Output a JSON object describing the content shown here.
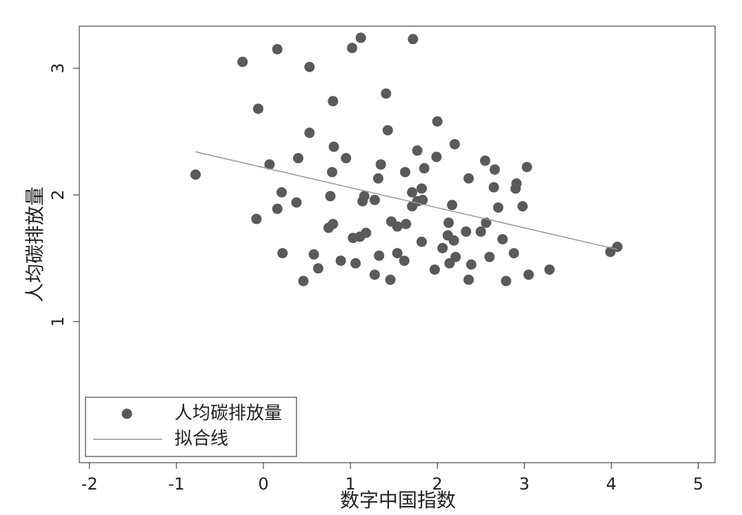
{
  "chart_data": {
    "type": "scatter",
    "xlabel": "数字中国指数",
    "ylabel": "人均碳排放量",
    "xlim": [
      -2.117,
      5.194
    ],
    "ylim": [
      -0.114,
      3.332
    ],
    "xticks": [
      -2,
      -1,
      0,
      1,
      2,
      3,
      4,
      5
    ],
    "yticks": [
      1,
      2,
      3
    ],
    "legend": "lower left",
    "series": [
      {
        "name": "人均碳排放量",
        "type": "scatter",
        "color": "#5a5a5a",
        "x": [
          -0.78,
          -0.24,
          0.16,
          0.53,
          1.02,
          1.12,
          1.72,
          -0.06,
          0.8,
          1.41,
          0.53,
          1.43,
          2.0,
          0.81,
          1.77,
          2.2,
          0.07,
          0.4,
          0.95,
          0.79,
          1.35,
          1.63,
          1.85,
          1.99,
          2.55,
          2.66,
          3.03,
          2.36,
          1.32,
          2.91,
          2.9,
          2.65,
          1.82,
          1.71,
          0.21,
          0.77,
          1.16,
          1.14,
          1.28,
          1.83,
          1.77,
          1.71,
          2.17,
          2.7,
          2.98,
          0.38,
          0.16,
          -0.08,
          1.47,
          1.54,
          0.8,
          0.75,
          1.64,
          2.13,
          2.56,
          1.18,
          1.03,
          1.11,
          2.12,
          2.19,
          2.33,
          2.5,
          2.75,
          1.82,
          2.06,
          0.22,
          0.58,
          1.33,
          1.54,
          2.21,
          2.6,
          2.88,
          3.99,
          4.07,
          0.89,
          1.06,
          1.62,
          2.14,
          2.39,
          0.63,
          1.97,
          3.29,
          1.28,
          3.05,
          0.46,
          1.46,
          2.36,
          2.79
        ],
        "values": [
          2.16,
          3.05,
          3.15,
          3.01,
          3.16,
          3.24,
          3.23,
          2.68,
          2.74,
          2.8,
          2.49,
          2.51,
          2.58,
          2.38,
          2.35,
          2.4,
          2.24,
          2.29,
          2.29,
          2.18,
          2.24,
          2.18,
          2.21,
          2.3,
          2.27,
          2.2,
          2.22,
          2.13,
          2.13,
          2.09,
          2.05,
          2.06,
          2.05,
          2.02,
          2.02,
          1.99,
          1.99,
          1.95,
          1.96,
          1.96,
          1.95,
          1.91,
          1.92,
          1.9,
          1.91,
          1.94,
          1.89,
          1.81,
          1.79,
          1.75,
          1.77,
          1.74,
          1.77,
          1.78,
          1.78,
          1.7,
          1.66,
          1.67,
          1.68,
          1.64,
          1.71,
          1.71,
          1.65,
          1.63,
          1.58,
          1.54,
          1.53,
          1.52,
          1.54,
          1.51,
          1.51,
          1.54,
          1.55,
          1.59,
          1.48,
          1.46,
          1.48,
          1.46,
          1.45,
          1.42,
          1.41,
          1.41,
          1.37,
          1.37,
          1.32,
          1.33,
          1.33,
          1.32
        ]
      },
      {
        "name": "拟合线",
        "type": "line",
        "color": "#999999",
        "x": [
          -0.78,
          4.07
        ],
        "values": [
          2.34,
          1.57
        ]
      }
    ]
  }
}
